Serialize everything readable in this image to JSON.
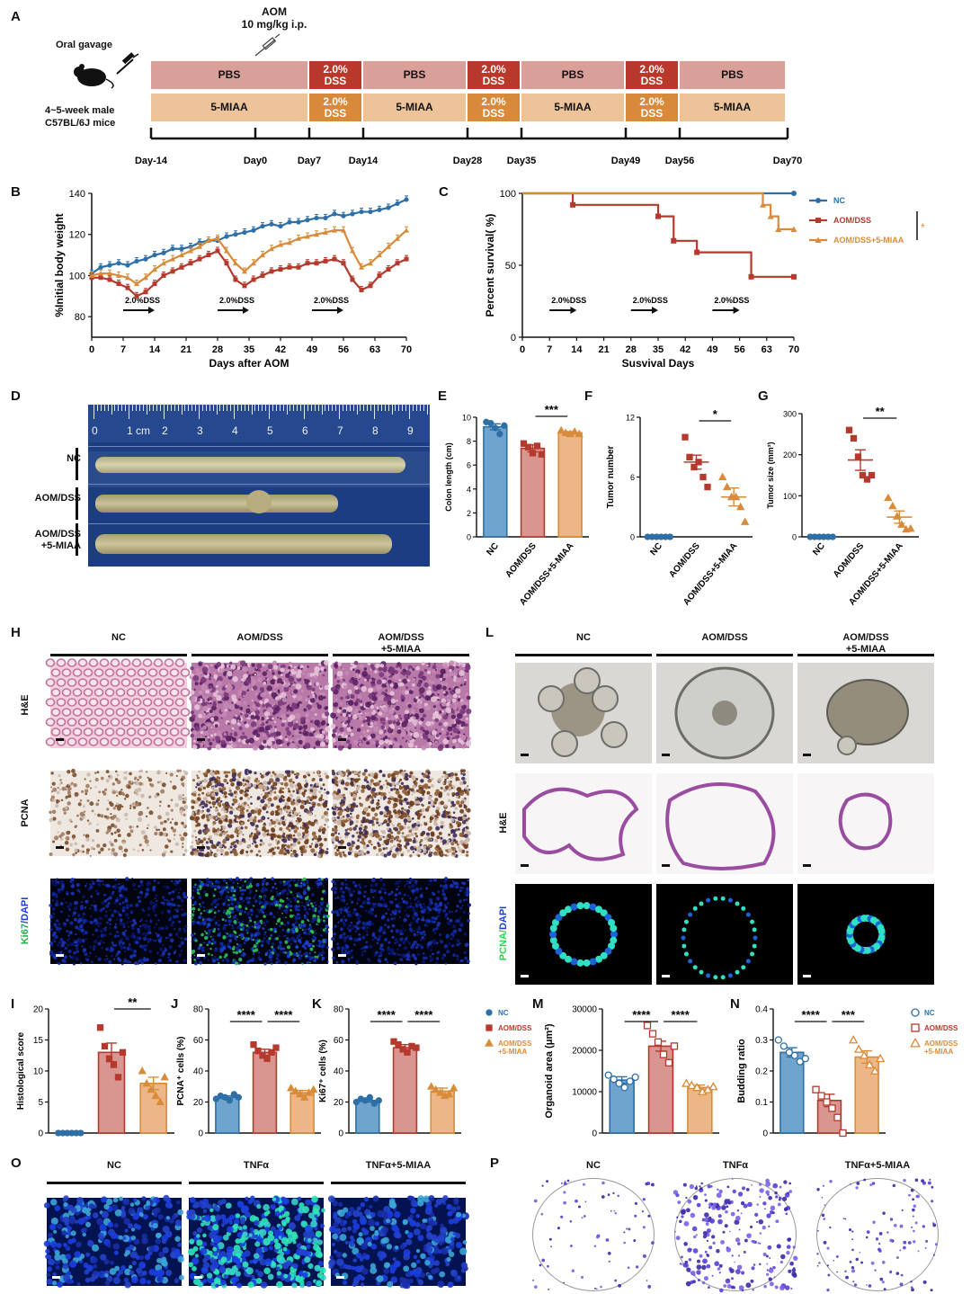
{
  "panels": {
    "A": "A",
    "B": "B",
    "C": "C",
    "D": "D",
    "E": "E",
    "F": "F",
    "G": "G",
    "H": "H",
    "I": "I",
    "J": "J",
    "K": "K",
    "L": "L",
    "M": "M",
    "N": "N",
    "O": "O",
    "P": "P"
  },
  "panelA": {
    "aom_label": "AOM",
    "aom_dose": "10 mg/kg i.p.",
    "oral_gavage": "Oral gavage",
    "mice_line1": "4~5-week male",
    "mice_line2": "C57BL/6J mice",
    "row1": [
      "PBS",
      "2.0%\nDSS",
      "PBS",
      "2.0%\nDSS",
      "PBS",
      "2.0%\nDSS",
      "PBS"
    ],
    "row2": [
      "5-MIAA",
      "2.0%\nDSS",
      "5-MIAA",
      "2.0%\nDSS",
      "5-MIAA",
      "2.0%\nDSS",
      "5-MIAA"
    ],
    "days": [
      "Day-14",
      "Day0",
      "Day7",
      "Day14",
      "Day28",
      "Day35",
      "Day49",
      "Day56",
      "Day70"
    ],
    "colors": {
      "pbs": "#d9a09a",
      "dss_red": "#b8392b",
      "miaa": "#edc39a",
      "dss_orange": "#d8893a"
    }
  },
  "chart_data": [
    {
      "id": "B",
      "type": "line",
      "ylabel": "%Initial body weight",
      "xlabel": "Days after AOM",
      "xticks": [
        0,
        7,
        14,
        21,
        28,
        35,
        42,
        49,
        56,
        63,
        70
      ],
      "yticks": [
        80,
        100,
        120,
        140
      ],
      "xlim": [
        0,
        70
      ],
      "ylim": [
        70,
        140
      ],
      "arrows": [
        {
          "label": "2.0%DSS",
          "x0": 7,
          "x1": 14
        },
        {
          "label": "2.0%DSS",
          "x0": 28,
          "x1": 35
        },
        {
          "label": "2.0%DSS",
          "x0": 49,
          "x1": 56
        }
      ],
      "series": [
        {
          "color": "#2e6fa7",
          "x": [
            0,
            2,
            4,
            6,
            8,
            10,
            12,
            14,
            16,
            18,
            20,
            22,
            24,
            26,
            28,
            30,
            32,
            34,
            36,
            38,
            40,
            42,
            44,
            46,
            48,
            50,
            52,
            54,
            56,
            58,
            60,
            62,
            64,
            66,
            68,
            70
          ],
          "values": [
            101,
            104,
            105,
            106,
            105,
            107,
            108,
            110,
            111,
            113,
            113,
            114,
            116,
            117,
            117,
            119,
            120,
            121,
            122,
            124,
            125,
            124,
            126,
            126,
            127,
            128,
            128,
            130,
            129,
            130,
            131,
            131,
            132,
            133,
            135,
            137
          ]
        },
        {
          "color": "#b5392c",
          "x": [
            0,
            2,
            4,
            6,
            8,
            10,
            12,
            14,
            16,
            18,
            20,
            22,
            24,
            26,
            28,
            30,
            32,
            34,
            36,
            38,
            40,
            42,
            44,
            46,
            48,
            50,
            52,
            54,
            56,
            58,
            60,
            62,
            64,
            66,
            68,
            70
          ],
          "values": [
            99,
            99,
            98,
            96,
            94,
            90,
            92,
            96,
            100,
            102,
            104,
            106,
            108,
            110,
            112,
            106,
            98,
            95,
            98,
            100,
            102,
            103,
            104,
            104,
            106,
            106,
            107,
            108,
            106,
            98,
            93,
            95,
            100,
            103,
            106,
            108
          ]
        },
        {
          "color": "#d88b3a",
          "x": [
            0,
            2,
            4,
            6,
            8,
            10,
            12,
            14,
            16,
            18,
            20,
            22,
            24,
            26,
            28,
            30,
            32,
            34,
            36,
            38,
            40,
            42,
            44,
            46,
            48,
            50,
            52,
            54,
            56,
            58,
            60,
            62,
            64,
            66,
            68,
            70
          ],
          "values": [
            100,
            101,
            101,
            100,
            99,
            96,
            99,
            103,
            106,
            108,
            110,
            112,
            114,
            117,
            118,
            112,
            106,
            102,
            106,
            110,
            113,
            115,
            116,
            118,
            119,
            120,
            121,
            122,
            122,
            112,
            104,
            106,
            110,
            114,
            118,
            122
          ]
        }
      ]
    },
    {
      "id": "C",
      "type": "line",
      "ylabel": "Percent survival( %)",
      "xlabel": "Susvival Days",
      "xticks": [
        0,
        7,
        14,
        21,
        28,
        35,
        42,
        49,
        56,
        63,
        70
      ],
      "yticks": [
        0,
        50,
        100
      ],
      "xlim": [
        0,
        70
      ],
      "ylim": [
        0,
        100
      ],
      "arrows": [
        {
          "label": "2.0%DSS",
          "x0": 7,
          "x1": 14
        },
        {
          "label": "2.0%DSS",
          "x0": 28,
          "x1": 35
        },
        {
          "label": "2.0%DSS",
          "x0": 49,
          "x1": 56
        }
      ],
      "legend": [
        "NC",
        "AOM/DSS",
        "AOM/DSS+5-MIAA"
      ],
      "sig": "*",
      "series": [
        {
          "name": "NC",
          "color": "#2e6fa7",
          "steps": [
            [
              0,
              100
            ],
            [
              70,
              100
            ]
          ]
        },
        {
          "name": "AOM/DSS",
          "color": "#b5392c",
          "steps": [
            [
              0,
              100
            ],
            [
              13,
              100
            ],
            [
              13,
              92
            ],
            [
              35,
              92
            ],
            [
              35,
              84
            ],
            [
              39,
              84
            ],
            [
              39,
              67
            ],
            [
              45,
              67
            ],
            [
              45,
              59
            ],
            [
              59,
              59
            ],
            [
              59,
              42
            ],
            [
              70,
              42
            ]
          ]
        },
        {
          "name": "AOM/DSS+5-MIAA",
          "color": "#d88b3a",
          "steps": [
            [
              0,
              100
            ],
            [
              62,
              100
            ],
            [
              62,
              92
            ],
            [
              64,
              92
            ],
            [
              64,
              84
            ],
            [
              66,
              84
            ],
            [
              66,
              75
            ],
            [
              70,
              75
            ]
          ]
        }
      ]
    },
    {
      "id": "E",
      "type": "bar",
      "ylabel": "Colon length (cm)",
      "ylim": [
        0,
        10
      ],
      "yticks": [
        0,
        2,
        4,
        6,
        8,
        10
      ],
      "categories": [
        "NC",
        "AOM/DSS",
        "AOM/DSS+5-MIAA"
      ],
      "values": [
        9.2,
        7.4,
        8.7
      ],
      "errors": [
        0.25,
        0.3,
        0.1
      ],
      "points": [
        [
          9.6,
          9.5,
          9.1,
          8.6,
          9.3
        ],
        [
          7.8,
          7.5,
          7.0,
          7.6,
          6.9
        ],
        [
          8.9,
          8.7,
          8.6,
          8.8,
          8.6
        ]
      ],
      "sig": [
        {
          "from": 1,
          "to": 2,
          "label": "***"
        }
      ]
    },
    {
      "id": "F",
      "type": "scatter",
      "ylabel": "Tumor number",
      "ylim": [
        0,
        12
      ],
      "yticks": [
        0,
        6,
        12
      ],
      "categories": [
        "NC",
        "AOM/DSS",
        "AOM/DSS+5-MIAA"
      ],
      "values": [
        0,
        7.5,
        4
      ],
      "errors": [
        0,
        0.7,
        0.9
      ],
      "points": [
        [
          0,
          0,
          0,
          0,
          0,
          0
        ],
        [
          10,
          8,
          7,
          7.5,
          6,
          5
        ],
        [
          6,
          5,
          4,
          4,
          3,
          1.5
        ]
      ],
      "sig": [
        {
          "from": 1,
          "to": 2,
          "label": "*"
        }
      ]
    },
    {
      "id": "G",
      "type": "scatter",
      "ylabel": "Tumor size (mm³)",
      "ylim": [
        0,
        300
      ],
      "yticks": [
        0,
        100,
        200,
        300
      ],
      "categories": [
        "NC",
        "AOM/DSS",
        "AOM/DSS+5-MIAA"
      ],
      "values": [
        0,
        187,
        48
      ],
      "errors": [
        0,
        25,
        15
      ],
      "points": [
        [
          0,
          0,
          0,
          0,
          0,
          0
        ],
        [
          260,
          240,
          195,
          150,
          140,
          150
        ],
        [
          95,
          75,
          50,
          30,
          18,
          20
        ]
      ],
      "sig": [
        {
          "from": 1,
          "to": 2,
          "label": "**"
        }
      ]
    },
    {
      "id": "I",
      "type": "bar",
      "ylabel": "Histological score",
      "ylim": [
        0,
        20
      ],
      "yticks": [
        0,
        5,
        10,
        15,
        20
      ],
      "categories": [
        "",
        "",
        ""
      ],
      "values": [
        0,
        13,
        8
      ],
      "errors": [
        0,
        1.5,
        1
      ],
      "points": [
        [
          0,
          0,
          0,
          0,
          0,
          0
        ],
        [
          17,
          14,
          12,
          11,
          9,
          13
        ],
        [
          10,
          8,
          7,
          6,
          5,
          9
        ]
      ],
      "sig": [
        {
          "from": 1,
          "to": 2,
          "label": "**"
        }
      ]
    },
    {
      "id": "J",
      "type": "bar",
      "ylabel": "PCNA⁺ cells (%)",
      "ylim": [
        0,
        80
      ],
      "yticks": [
        0,
        20,
        40,
        60,
        80
      ],
      "categories": [
        "",
        "",
        ""
      ],
      "values": [
        23,
        52,
        26
      ],
      "errors": [
        1,
        2,
        1.5
      ],
      "points": [
        [
          22,
          24,
          23,
          21,
          25,
          23
        ],
        [
          57,
          53,
          50,
          48,
          52,
          55
        ],
        [
          29,
          27,
          25,
          23,
          26,
          28
        ]
      ],
      "sig": [
        {
          "from": 0,
          "to": 1,
          "label": "****"
        },
        {
          "from": 1,
          "to": 2,
          "label": "****"
        }
      ]
    },
    {
      "id": "K",
      "type": "bar",
      "ylabel": "Ki67⁺ cells (%)",
      "ylim": [
        0,
        80
      ],
      "yticks": [
        0,
        20,
        40,
        60,
        80
      ],
      "categories": [
        "",
        "",
        ""
      ],
      "values": [
        21,
        55,
        27
      ],
      "errors": [
        1,
        2,
        2
      ],
      "points": [
        [
          20,
          22,
          21,
          23,
          19,
          21
        ],
        [
          59,
          57,
          54,
          52,
          56,
          55
        ],
        [
          30,
          28,
          26,
          24,
          25,
          29
        ]
      ],
      "sig": [
        {
          "from": 0,
          "to": 1,
          "label": "****"
        },
        {
          "from": 1,
          "to": 2,
          "label": "****"
        }
      ],
      "legend": [
        "NC",
        "AOM/DSS",
        "AOM/DSS\n+5-MIAA"
      ]
    },
    {
      "id": "M",
      "type": "bar",
      "ylabel": "Organoid area (μm²)",
      "ylim": [
        0,
        30000
      ],
      "yticks": [
        0,
        10000,
        20000,
        30000
      ],
      "categories": [
        "",
        "",
        ""
      ],
      "values": [
        12800,
        21000,
        11000
      ],
      "errors": [
        800,
        1200,
        600
      ],
      "points": [
        [
          14000,
          13000,
          12000,
          11000,
          12500,
          13500
        ],
        [
          26000,
          24000,
          22000,
          19000,
          17000,
          21000
        ],
        [
          12000,
          11500,
          11000,
          10000,
          10500,
          11200
        ]
      ],
      "sig": [
        {
          "from": 0,
          "to": 1,
          "label": "****"
        },
        {
          "from": 1,
          "to": 2,
          "label": "****"
        }
      ]
    },
    {
      "id": "N",
      "type": "bar",
      "ylabel": "Budding ratio",
      "ylim": [
        0,
        0.4
      ],
      "yticks": [
        0,
        0.1,
        0.2,
        0.3,
        0.4
      ],
      "categories": [
        "",
        "",
        ""
      ],
      "values": [
        0.26,
        0.105,
        0.245
      ],
      "errors": [
        0.015,
        0.02,
        0.02
      ],
      "points": [
        [
          0.3,
          0.28,
          0.26,
          0.25,
          0.23,
          0.24
        ],
        [
          0.14,
          0.12,
          0.1,
          0.08,
          0.05,
          0.0
        ],
        [
          0.3,
          0.27,
          0.25,
          0.22,
          0.2,
          0.24
        ]
      ],
      "sig": [
        {
          "from": 0,
          "to": 1,
          "label": "****"
        },
        {
          "from": 1,
          "to": 2,
          "label": "***"
        }
      ],
      "legend": [
        "NC",
        "AOM/DSS",
        "AOM/DSS\n+5-MIAA"
      ]
    }
  ],
  "panelD": {
    "rows": [
      "NC",
      "AOM/DSS",
      "AOM/DSS\n+5-MIAA"
    ],
    "ruler": [
      "0",
      "1 cm",
      "2",
      "3",
      "4",
      "5",
      "6",
      "7",
      "8",
      "9"
    ]
  },
  "panelH": {
    "cols": [
      "NC",
      "AOM/DSS",
      "AOM/DSS\n+5-MIAA"
    ],
    "rows": [
      "H&E",
      "PCNA",
      "Ki67/DAPI"
    ]
  },
  "panelL": {
    "cols": [
      "NC",
      "AOM/DSS",
      "AOM/DSS\n+5-MIAA"
    ],
    "rows": [
      "H&E",
      "PCNA/DAPI"
    ]
  },
  "panelO": {
    "cols": [
      "NC",
      "TNFα",
      "TNFα+5-MIAA"
    ]
  },
  "panelP": {
    "cols": [
      "NC",
      "TNFα",
      "TNFα+5-MIAA"
    ]
  },
  "group_colors": [
    "#2e6fa7",
    "#b5392c",
    "#d88b3a"
  ],
  "group_fills": [
    "#6fa4cf",
    "#d99590",
    "#edb687"
  ]
}
